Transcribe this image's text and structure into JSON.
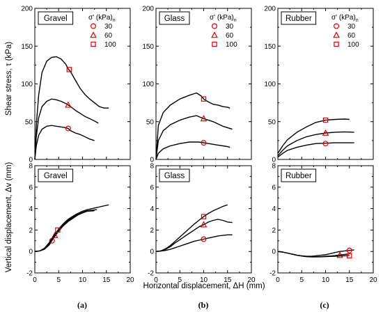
{
  "y_axis_labels": {
    "shear": "Shear stress, τ (kPa)",
    "vertical": "Vertical displacement, Δv (mm)"
  },
  "x_axis_label": "Horizontal displacement, ΔH (mm)",
  "legend": {
    "title": "σ'n (kPa)",
    "entries": [
      "30",
      "60",
      "100"
    ]
  },
  "sub_figure_labels": [
    "(a)",
    "(b)",
    "(c)"
  ],
  "colors": {
    "marker": "#e00000",
    "curve": "#000000"
  },
  "chart_data": [
    {
      "type": "line",
      "panel": "Gravel",
      "quantity": "shear",
      "xlim": [
        0,
        20
      ],
      "ylim": [
        0,
        200
      ],
      "xticks": [
        0,
        5,
        10,
        15,
        20
      ],
      "yticks": [
        0,
        50,
        100,
        150,
        200
      ],
      "series": [
        {
          "name": "30",
          "marker": "circle",
          "x": [
            0,
            0.3,
            0.8,
            1.5,
            2.5,
            3.5,
            4.5,
            5.5,
            6.5,
            7.0,
            7.5,
            8.5,
            9.5,
            10.5,
            11.5,
            12.5
          ],
          "y": [
            0,
            18,
            32,
            40,
            44,
            45,
            44,
            43,
            42,
            41,
            38,
            35,
            33,
            30,
            27,
            25
          ],
          "marker_at": [
            7.0,
            41
          ]
        },
        {
          "name": "60",
          "marker": "triangle",
          "x": [
            0,
            0.3,
            0.8,
            1.5,
            2.5,
            3.5,
            4.5,
            5.5,
            6.5,
            7.0,
            7.5,
            8.5,
            9.5,
            10.5,
            11.5,
            12.5,
            13.3
          ],
          "y": [
            0,
            30,
            55,
            70,
            77,
            80,
            79,
            77,
            74,
            72,
            70,
            65,
            61,
            57,
            54,
            51,
            48
          ],
          "marker_at": [
            7.0,
            72
          ]
        },
        {
          "name": "100",
          "marker": "square",
          "x": [
            0,
            0.3,
            0.8,
            1.5,
            2.5,
            3.5,
            4.5,
            5.5,
            6.5,
            7.0,
            7.5,
            8.5,
            9.5,
            10.5,
            11.5,
            12.5,
            13.5,
            14.5,
            15.5
          ],
          "y": [
            0,
            45,
            85,
            115,
            130,
            135,
            136,
            133,
            126,
            120,
            116,
            105,
            94,
            86,
            80,
            75,
            70,
            68,
            68
          ],
          "marker_at": [
            7.2,
            119
          ]
        }
      ]
    },
    {
      "type": "line",
      "panel": "Glass",
      "quantity": "shear",
      "xlim": [
        0,
        20
      ],
      "ylim": [
        0,
        200
      ],
      "xticks": [
        0,
        5,
        10,
        15,
        20
      ],
      "yticks": [
        0,
        50,
        100,
        150,
        200
      ],
      "series": [
        {
          "name": "30",
          "marker": "circle",
          "x": [
            0,
            0.5,
            1.5,
            3,
            5,
            7,
            9,
            10,
            11,
            12,
            13,
            14,
            15,
            15.5
          ],
          "y": [
            0,
            8,
            14,
            18,
            21,
            23,
            23,
            22,
            21,
            20,
            19,
            18,
            17,
            16
          ],
          "marker_at": [
            10,
            22
          ]
        },
        {
          "name": "60",
          "marker": "triangle",
          "x": [
            0,
            0.5,
            1.5,
            3,
            5,
            7,
            8.5,
            10,
            11,
            12,
            13,
            14,
            15,
            16
          ],
          "y": [
            0,
            25,
            38,
            46,
            52,
            56,
            58,
            54,
            52,
            50,
            47,
            44,
            42,
            40
          ],
          "marker_at": [
            10,
            54
          ]
        },
        {
          "name": "100",
          "marker": "square",
          "x": [
            0,
            0.5,
            1.5,
            3,
            5,
            7,
            8.5,
            9.5,
            10,
            11,
            12,
            13,
            14,
            15,
            15.5
          ],
          "y": [
            0,
            45,
            62,
            72,
            80,
            85,
            88,
            84,
            80,
            76,
            73,
            72,
            70,
            69,
            68
          ],
          "marker_at": [
            10,
            80
          ]
        }
      ]
    },
    {
      "type": "line",
      "panel": "Rubber",
      "quantity": "shear",
      "xlim": [
        0,
        20
      ],
      "ylim": [
        0,
        200
      ],
      "xticks": [
        0,
        5,
        10,
        15,
        20
      ],
      "yticks": [
        0,
        50,
        100,
        150,
        200
      ],
      "series": [
        {
          "name": "30",
          "marker": "circle",
          "x": [
            0,
            1,
            2,
            4,
            6,
            8,
            10,
            12,
            14,
            16
          ],
          "y": [
            3,
            8,
            12,
            16,
            19,
            21,
            21.5,
            22,
            22,
            22
          ],
          "marker_at": [
            10,
            21
          ]
        },
        {
          "name": "60",
          "marker": "triangle",
          "x": [
            0,
            1,
            2,
            4,
            6,
            8,
            10,
            12,
            14,
            16
          ],
          "y": [
            5,
            12,
            18,
            25,
            30,
            33,
            35,
            36,
            36.5,
            36
          ],
          "marker_at": [
            10,
            35
          ]
        },
        {
          "name": "100",
          "marker": "square",
          "x": [
            0,
            1,
            2,
            4,
            6,
            8,
            10,
            12,
            14,
            15
          ],
          "y": [
            8,
            18,
            26,
            36,
            43,
            49,
            52,
            53,
            53.5,
            53
          ],
          "marker_at": [
            10,
            52
          ]
        }
      ]
    },
    {
      "type": "line",
      "panel": "Gravel",
      "quantity": "vertical",
      "xlim": [
        0,
        20
      ],
      "ylim": [
        -2,
        8
      ],
      "xticks": [
        0,
        5,
        10,
        15,
        20
      ],
      "yticks": [
        -2,
        0,
        2,
        4,
        6,
        8
      ],
      "series": [
        {
          "name": "30",
          "marker": "circle",
          "x": [
            0,
            1,
            2,
            3,
            4,
            5,
            6,
            7,
            8,
            9,
            10,
            11,
            12.5
          ],
          "y": [
            0,
            0.05,
            0.2,
            0.6,
            1.3,
            1.9,
            2.4,
            2.8,
            3.1,
            3.4,
            3.6,
            3.75,
            3.8
          ],
          "marker_at": [
            3.6,
            1.0
          ]
        },
        {
          "name": "60",
          "marker": "triangle",
          "x": [
            0,
            1,
            2,
            3,
            4,
            5,
            6,
            7,
            8,
            9,
            10,
            11,
            12,
            13
          ],
          "y": [
            0,
            0.05,
            0.25,
            0.7,
            1.4,
            2.0,
            2.5,
            2.9,
            3.2,
            3.45,
            3.65,
            3.8,
            3.85,
            3.9
          ],
          "marker_at": [
            4.2,
            1.5
          ]
        },
        {
          "name": "100",
          "marker": "square",
          "x": [
            0,
            1,
            2,
            3,
            4,
            5,
            6,
            7,
            8,
            9,
            10,
            11,
            12,
            13,
            14,
            15,
            15.5
          ],
          "y": [
            0,
            0.05,
            0.3,
            0.8,
            1.5,
            2.1,
            2.6,
            3.0,
            3.3,
            3.55,
            3.75,
            3.9,
            4.0,
            4.1,
            4.2,
            4.3,
            4.35
          ],
          "marker_at": [
            4.8,
            2.0
          ]
        }
      ]
    },
    {
      "type": "line",
      "panel": "Glass",
      "quantity": "vertical",
      "xlim": [
        0,
        20
      ],
      "ylim": [
        -2,
        8
      ],
      "xticks": [
        0,
        5,
        10,
        15,
        20
      ],
      "yticks": [
        -2,
        0,
        2,
        4,
        6,
        8
      ],
      "series": [
        {
          "name": "30",
          "marker": "circle",
          "x": [
            0,
            1,
            2,
            3,
            4,
            5,
            6,
            7,
            8,
            9,
            10,
            11,
            12,
            13,
            14,
            15,
            16
          ],
          "y": [
            0,
            0.03,
            0.1,
            0.2,
            0.35,
            0.5,
            0.65,
            0.8,
            0.95,
            1.05,
            1.15,
            1.25,
            1.35,
            1.45,
            1.5,
            1.55,
            1.55
          ],
          "marker_at": [
            10,
            1.15
          ]
        },
        {
          "name": "60",
          "marker": "triangle",
          "x": [
            0,
            1,
            2,
            3,
            4,
            5,
            6,
            7,
            8,
            9,
            10,
            11,
            12,
            13,
            14,
            15,
            16
          ],
          "y": [
            0,
            0.05,
            0.2,
            0.45,
            0.8,
            1.1,
            1.4,
            1.7,
            2.0,
            2.3,
            2.5,
            2.75,
            2.9,
            3.0,
            2.9,
            2.75,
            2.7
          ],
          "marker_at": [
            10,
            2.5
          ]
        },
        {
          "name": "100",
          "marker": "square",
          "x": [
            0,
            1,
            2,
            3,
            4,
            5,
            6,
            7,
            8,
            9,
            10,
            11,
            12,
            13,
            14,
            15
          ],
          "y": [
            0,
            0.05,
            0.25,
            0.55,
            0.95,
            1.35,
            1.75,
            2.15,
            2.55,
            2.9,
            3.25,
            3.55,
            3.8,
            4.0,
            4.2,
            4.35
          ],
          "marker_at": [
            10,
            3.25
          ]
        }
      ]
    },
    {
      "type": "line",
      "panel": "Rubber",
      "quantity": "vertical",
      "xlim": [
        0,
        20
      ],
      "ylim": [
        -2,
        8
      ],
      "xticks": [
        0,
        5,
        10,
        15,
        20
      ],
      "yticks": [
        -2,
        0,
        2,
        4,
        6,
        8
      ],
      "series": [
        {
          "name": "30",
          "marker": "circle",
          "x": [
            0,
            1,
            2,
            3,
            4,
            5,
            6,
            7,
            8,
            9,
            10,
            11,
            12,
            13,
            14,
            15,
            16
          ],
          "y": [
            0,
            -0.05,
            -0.15,
            -0.25,
            -0.35,
            -0.4,
            -0.45,
            -0.45,
            -0.4,
            -0.35,
            -0.3,
            -0.2,
            -0.1,
            0.0,
            0.05,
            0.1,
            0.15
          ],
          "marker_at": [
            15,
            0.1
          ]
        },
        {
          "name": "60",
          "marker": "triangle",
          "x": [
            0,
            1,
            2,
            3,
            4,
            5,
            6,
            7,
            8,
            9,
            10,
            11,
            12,
            13,
            14,
            15
          ],
          "y": [
            0,
            -0.05,
            -0.15,
            -0.25,
            -0.35,
            -0.42,
            -0.48,
            -0.5,
            -0.5,
            -0.48,
            -0.45,
            -0.42,
            -0.38,
            -0.32,
            -0.28,
            -0.22
          ],
          "marker_at": [
            13,
            -0.35
          ]
        },
        {
          "name": "100",
          "marker": "square",
          "x": [
            0,
            1,
            2,
            3,
            4,
            5,
            6,
            7,
            8,
            9,
            10,
            11,
            12,
            13,
            14,
            15
          ],
          "y": [
            0,
            -0.05,
            -0.15,
            -0.25,
            -0.35,
            -0.42,
            -0.48,
            -0.5,
            -0.5,
            -0.5,
            -0.48,
            -0.46,
            -0.44,
            -0.42,
            -0.4,
            -0.38
          ],
          "marker_at": [
            15,
            -0.4
          ]
        }
      ]
    }
  ]
}
